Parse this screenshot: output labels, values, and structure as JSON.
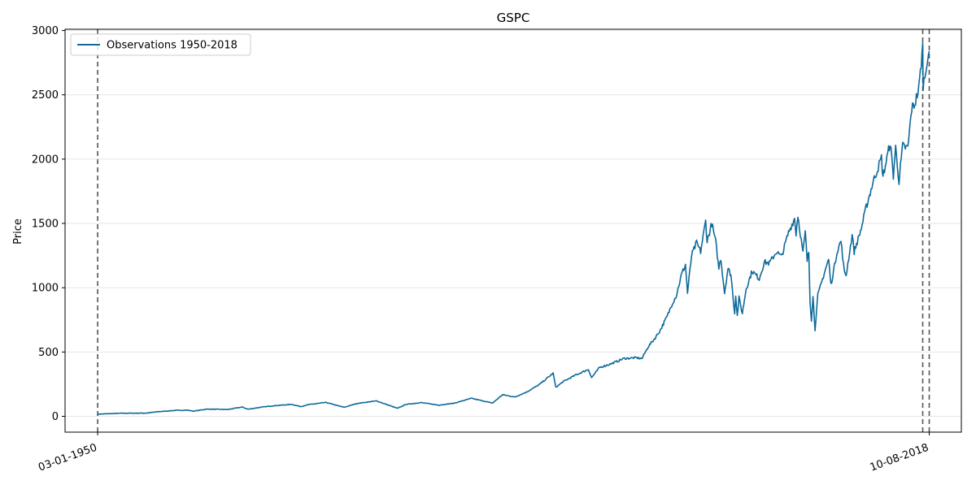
{
  "chart_data": {
    "type": "line",
    "title": "GSPC",
    "xlabel": "",
    "ylabel": "Price",
    "xlim": [
      "1947-04-27",
      "2021-04-04"
    ],
    "ylim": [
      -123,
      3010
    ],
    "x_ticks": [
      {
        "date": "1950-01-03",
        "label": "03-01-1950"
      },
      {
        "date": "2018-08-10",
        "label": "10-08-2018"
      }
    ],
    "y_ticks": [
      0,
      500,
      1000,
      1500,
      2000,
      2500,
      3000
    ],
    "grid": {
      "horizontal": true,
      "vertical": false
    },
    "legend": {
      "position": "top-left",
      "entries": [
        "Observations 1950-2018"
      ]
    },
    "vlines": [
      {
        "date": "1950-01-03",
        "style": "dashed",
        "color": "#555555"
      },
      {
        "date": "2018-01-26",
        "style": "dashed",
        "color": "#555555"
      },
      {
        "date": "2018-08-10",
        "style": "dashed",
        "color": "#555555"
      }
    ],
    "series": [
      {
        "name": "Observations 1950-2018",
        "color": "#0f6a9a",
        "points": [
          [
            "1950-01-03",
            17
          ],
          [
            "1952-01-01",
            24
          ],
          [
            "1954-01-01",
            25
          ],
          [
            "1955-01-01",
            36
          ],
          [
            "1956-06-01",
            46
          ],
          [
            "1957-06-01",
            48
          ],
          [
            "1957-12-01",
            40
          ],
          [
            "1959-01-01",
            56
          ],
          [
            "1960-10-01",
            53
          ],
          [
            "1961-12-01",
            72
          ],
          [
            "1962-06-01",
            55
          ],
          [
            "1963-06-01",
            70
          ],
          [
            "1964-06-01",
            81
          ],
          [
            "1966-01-01",
            93
          ],
          [
            "1966-10-01",
            76
          ],
          [
            "1967-06-01",
            91
          ],
          [
            "1968-11-01",
            108
          ],
          [
            "1970-05-01",
            70
          ],
          [
            "1971-06-01",
            100
          ],
          [
            "1973-01-01",
            120
          ],
          [
            "1974-10-01",
            62
          ],
          [
            "1975-06-01",
            92
          ],
          [
            "1976-09-01",
            107
          ],
          [
            "1978-03-01",
            87
          ],
          [
            "1979-06-01",
            102
          ],
          [
            "1980-11-01",
            140
          ],
          [
            "1982-08-01",
            103
          ],
          [
            "1983-06-01",
            168
          ],
          [
            "1984-06-01",
            150
          ],
          [
            "1985-06-01",
            190
          ],
          [
            "1986-06-01",
            245
          ],
          [
            "1987-08-01",
            335
          ],
          [
            "1987-10-20",
            225
          ],
          [
            "1988-06-01",
            270
          ],
          [
            "1989-06-01",
            320
          ],
          [
            "1990-07-01",
            365
          ],
          [
            "1990-10-01",
            300
          ],
          [
            "1991-06-01",
            380
          ],
          [
            "1992-06-01",
            410
          ],
          [
            "1993-06-01",
            450
          ],
          [
            "1994-06-01",
            455
          ],
          [
            "1994-12-01",
            450
          ],
          [
            "1995-06-01",
            540
          ],
          [
            "1996-01-01",
            610
          ],
          [
            "1996-06-01",
            670
          ],
          [
            "1997-01-01",
            780
          ],
          [
            "1997-06-01",
            880
          ],
          [
            "1997-10-01",
            940
          ],
          [
            "1998-03-01",
            1100
          ],
          [
            "1998-07-01",
            1180
          ],
          [
            "1998-09-01",
            960
          ],
          [
            "1999-01-01",
            1250
          ],
          [
            "1999-06-01",
            1350
          ],
          [
            "1999-10-01",
            1280
          ],
          [
            "2000-03-01",
            1520
          ],
          [
            "2000-04-14",
            1360
          ],
          [
            "2000-09-01",
            1500
          ],
          [
            "2001-01-01",
            1350
          ],
          [
            "2001-04-01",
            1150
          ],
          [
            "2001-06-01",
            1230
          ],
          [
            "2001-09-21",
            960
          ],
          [
            "2002-01-01",
            1150
          ],
          [
            "2002-04-01",
            1100
          ],
          [
            "2002-07-23",
            800
          ],
          [
            "2002-08-22",
            950
          ],
          [
            "2002-10-09",
            780
          ],
          [
            "2002-12-01",
            920
          ],
          [
            "2003-03-11",
            800
          ],
          [
            "2003-07-01",
            990
          ],
          [
            "2004-01-01",
            1130
          ],
          [
            "2004-08-01",
            1070
          ],
          [
            "2005-01-01",
            1200
          ],
          [
            "2005-06-01",
            1190
          ],
          [
            "2006-01-01",
            1280
          ],
          [
            "2006-06-01",
            1240
          ],
          [
            "2007-01-01",
            1430
          ],
          [
            "2007-07-01",
            1540
          ],
          [
            "2007-08-15",
            1420
          ],
          [
            "2007-10-09",
            1565
          ],
          [
            "2008-03-10",
            1270
          ],
          [
            "2008-05-19",
            1430
          ],
          [
            "2008-07-15",
            1210
          ],
          [
            "2008-09-01",
            1280
          ],
          [
            "2008-10-10",
            900
          ],
          [
            "2008-11-20",
            750
          ],
          [
            "2009-01-06",
            930
          ],
          [
            "2009-03-09",
            677
          ],
          [
            "2009-06-01",
            940
          ],
          [
            "2010-01-01",
            1130
          ],
          [
            "2010-04-23",
            1220
          ],
          [
            "2010-07-02",
            1020
          ],
          [
            "2011-01-01",
            1280
          ],
          [
            "2011-04-29",
            1365
          ],
          [
            "2011-08-08",
            1120
          ],
          [
            "2011-10-03",
            1100
          ],
          [
            "2012-04-01",
            1410
          ],
          [
            "2012-06-01",
            1280
          ],
          [
            "2013-01-01",
            1460
          ],
          [
            "2013-06-01",
            1630
          ],
          [
            "2014-01-01",
            1830
          ],
          [
            "2014-09-01",
            2010
          ],
          [
            "2014-10-15",
            1860
          ],
          [
            "2015-05-21",
            2130
          ],
          [
            "2015-08-25",
            1870
          ],
          [
            "2015-11-01",
            2090
          ],
          [
            "2016-02-11",
            1830
          ],
          [
            "2016-06-01",
            2100
          ],
          [
            "2016-11-04",
            2085
          ],
          [
            "2017-03-01",
            2395
          ],
          [
            "2017-06-01",
            2430
          ],
          [
            "2017-10-01",
            2550
          ],
          [
            "2018-01-26",
            2872
          ],
          [
            "2018-02-08",
            2580
          ],
          [
            "2018-04-01",
            2640
          ],
          [
            "2018-06-01",
            2770
          ],
          [
            "2018-08-10",
            2840
          ]
        ]
      }
    ]
  }
}
